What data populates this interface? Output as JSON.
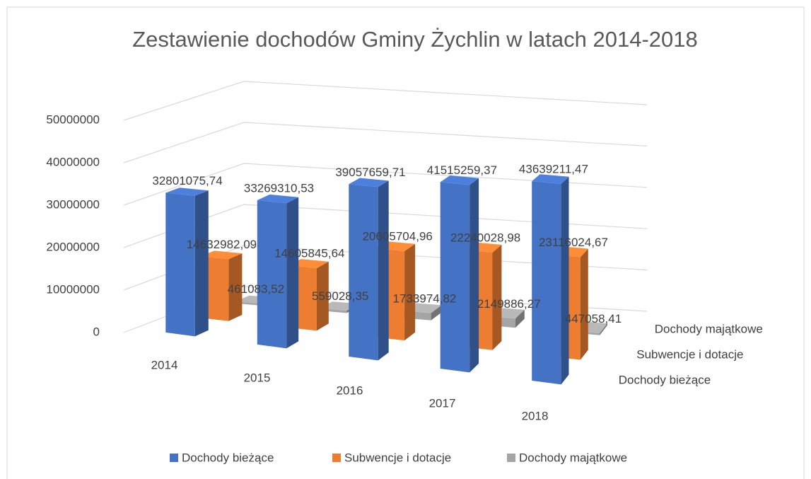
{
  "chart_data": {
    "type": "bar3d",
    "title": "Zestawienie dochodów Gminy Żychlin w latach 2014-2018",
    "categories": [
      "2014",
      "2015",
      "2016",
      "2017",
      "2018"
    ],
    "series": [
      {
        "name": "Dochody bieżące",
        "color": "#4472c4",
        "values": [
          32801075.74,
          33269310.53,
          39057659.71,
          41515259.37,
          43639211.47
        ],
        "value_labels": [
          "32801075,74",
          "33269310,53",
          "39057659,71",
          "41515259,37",
          "43639211,47"
        ]
      },
      {
        "name": "Subwencje i dotacje",
        "color": "#ed7d31",
        "values": [
          14632982.09,
          14605845.64,
          20605704.96,
          22240028.98,
          23116024.67
        ],
        "value_labels": [
          "14632982,09",
          "14605845,64",
          "20605704,96",
          "22240028,98",
          "23116024,67"
        ]
      },
      {
        "name": "Dochody majątkowe",
        "color": "#a5a5a5",
        "values": [
          461083.52,
          559028.35,
          1733974.82,
          2149886.27,
          447058.41
        ],
        "value_labels": [
          "461083,52",
          "559028,35",
          "1733974,82",
          "2149886,27",
          "447058,41"
        ]
      }
    ],
    "ylim": [
      0,
      50000000
    ],
    "yticks": [
      0,
      10000000,
      20000000,
      30000000,
      40000000,
      50000000
    ],
    "grid": true,
    "legend": "bottom"
  }
}
